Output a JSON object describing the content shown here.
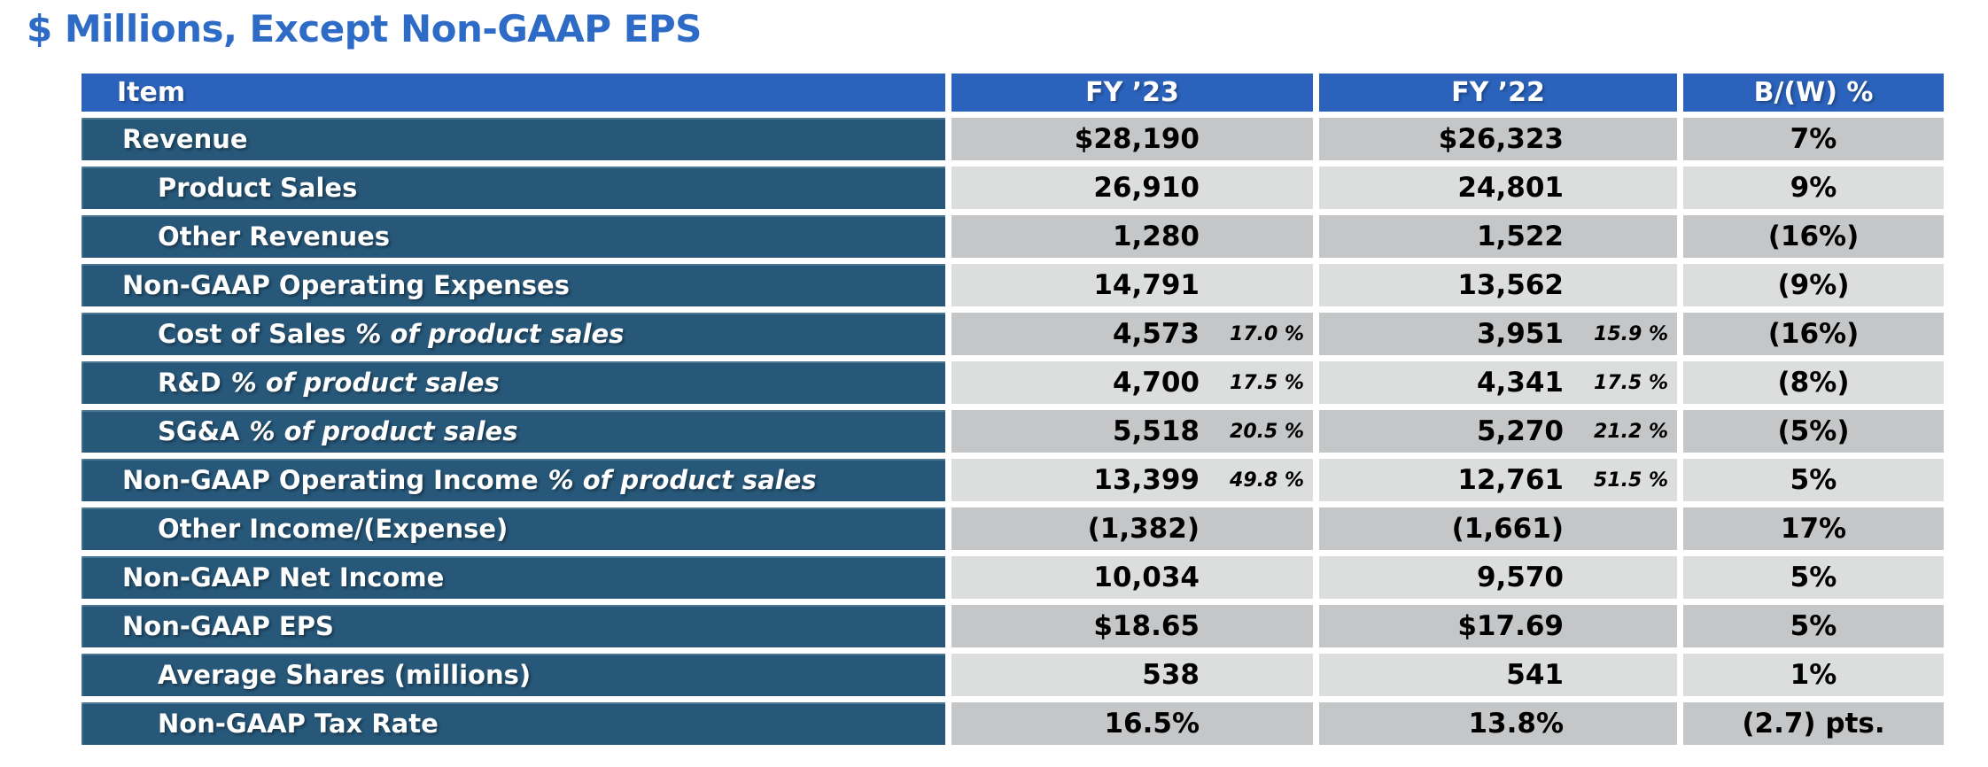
{
  "title": "$ Millions, Except Non-GAAP EPS",
  "colors": {
    "title": "#2E6BC7",
    "header_bg": "#2B63BC",
    "row_label_bg": "#27587A",
    "cell_dark": "#C5C6C7",
    "cell_light": "#DCDDDD",
    "header_text": "#FFFFFF",
    "label_text": "#FFFFFF",
    "value_text": "#000000"
  },
  "table": {
    "headers": [
      "Item",
      "FY ’23",
      "FY ’22",
      "B/(W) %"
    ],
    "rows": [
      {
        "label": "Revenue",
        "italic": "",
        "indent": false,
        "fy23": "$28,190",
        "fy23_pct": "",
        "fy22": "$26,323",
        "fy22_pct": "",
        "bw": "7%"
      },
      {
        "label": "Product Sales",
        "italic": "",
        "indent": true,
        "fy23": "26,910",
        "fy23_pct": "",
        "fy22": "24,801",
        "fy22_pct": "",
        "bw": "9%"
      },
      {
        "label": "Other Revenues",
        "italic": "",
        "indent": true,
        "fy23": "1,280",
        "fy23_pct": "",
        "fy22": "1,522",
        "fy22_pct": "",
        "bw": "(16%)"
      },
      {
        "label": "Non-GAAP Operating Expenses",
        "italic": "",
        "indent": false,
        "fy23": "14,791",
        "fy23_pct": "",
        "fy22": "13,562",
        "fy22_pct": "",
        "bw": "(9%)"
      },
      {
        "label": "Cost of Sales",
        "italic": "% of product sales",
        "indent": true,
        "fy23": "4,573",
        "fy23_pct": "17.0 %",
        "fy22": "3,951",
        "fy22_pct": "15.9 %",
        "bw": "(16%)"
      },
      {
        "label": "R&D",
        "italic": "% of product sales",
        "indent": true,
        "fy23": "4,700",
        "fy23_pct": "17.5 %",
        "fy22": "4,341",
        "fy22_pct": "17.5 %",
        "bw": "(8%)"
      },
      {
        "label": "SG&A",
        "italic": "% of product sales",
        "indent": true,
        "fy23": "5,518",
        "fy23_pct": "20.5 %",
        "fy22": "5,270",
        "fy22_pct": "21.2 %",
        "bw": "(5%)"
      },
      {
        "label": "Non-GAAP Operating Income",
        "italic": "% of product sales",
        "indent": false,
        "fy23": "13,399",
        "fy23_pct": "49.8 %",
        "fy22": "12,761",
        "fy22_pct": "51.5 %",
        "bw": "5%"
      },
      {
        "label": "Other Income/(Expense)",
        "italic": "",
        "indent": true,
        "fy23": "(1,382)",
        "fy23_pct": "",
        "fy22": "(1,661)",
        "fy22_pct": "",
        "bw": "17%"
      },
      {
        "label": "Non-GAAP Net Income",
        "italic": "",
        "indent": false,
        "fy23": "10,034",
        "fy23_pct": "",
        "fy22": "9,570",
        "fy22_pct": "",
        "bw": "5%"
      },
      {
        "label": "Non-GAAP EPS",
        "italic": "",
        "indent": false,
        "fy23": "$18.65",
        "fy23_pct": "",
        "fy22": "$17.69",
        "fy22_pct": "",
        "bw": "5%"
      },
      {
        "label": "Average Shares (millions)",
        "italic": "",
        "indent": true,
        "fy23": "538",
        "fy23_pct": "",
        "fy22": "541",
        "fy22_pct": "",
        "bw": "1%"
      },
      {
        "label": "Non-GAAP Tax Rate",
        "italic": "",
        "indent": true,
        "fy23": "16.5%",
        "fy23_pct": "",
        "fy22": "13.8%",
        "fy22_pct": "",
        "bw": "(2.7) pts."
      }
    ]
  }
}
